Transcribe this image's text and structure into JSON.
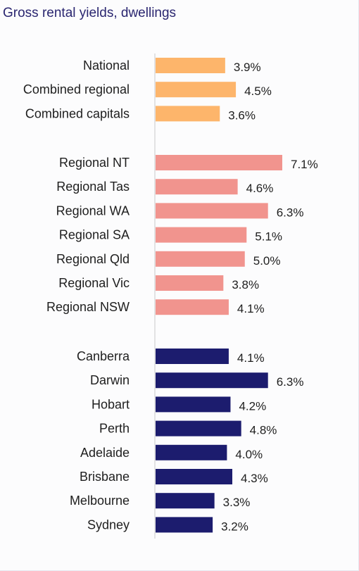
{
  "title": "Gross rental yields, dwellings",
  "chart_data": {
    "type": "bar",
    "orientation": "horizontal",
    "title": "Gross rental yields, dwellings",
    "xlabel": "",
    "ylabel": "",
    "xlim": [
      0,
      8
    ],
    "grid": false,
    "groups": [
      {
        "color": "#FDB56B",
        "categories": [
          "National",
          "Combined regional",
          "Combined capitals"
        ],
        "values": [
          3.9,
          4.5,
          3.6
        ],
        "labels": [
          "3.9%",
          "4.5%",
          "3.6%"
        ]
      },
      {
        "color": "#F1948E",
        "categories": [
          "Regional NT",
          "Regional Tas",
          "Regional WA",
          "Regional SA",
          "Regional Qld",
          "Regional Vic",
          "Regional NSW"
        ],
        "values": [
          7.1,
          4.6,
          6.3,
          5.1,
          5.0,
          3.8,
          4.1
        ],
        "labels": [
          "7.1%",
          "4.6%",
          "6.3%",
          "5.1%",
          "5.0%",
          "3.8%",
          "4.1%"
        ]
      },
      {
        "color": "#1C1C6E",
        "categories": [
          "Canberra",
          "Darwin",
          "Hobart",
          "Perth",
          "Adelaide",
          "Brisbane",
          "Melbourne",
          "Sydney"
        ],
        "values": [
          4.1,
          6.3,
          4.2,
          4.8,
          4.0,
          4.3,
          3.3,
          3.2
        ],
        "labels": [
          "4.1%",
          "6.3%",
          "4.2%",
          "4.8%",
          "4.0%",
          "4.3%",
          "3.3%",
          "3.2%"
        ]
      }
    ]
  }
}
